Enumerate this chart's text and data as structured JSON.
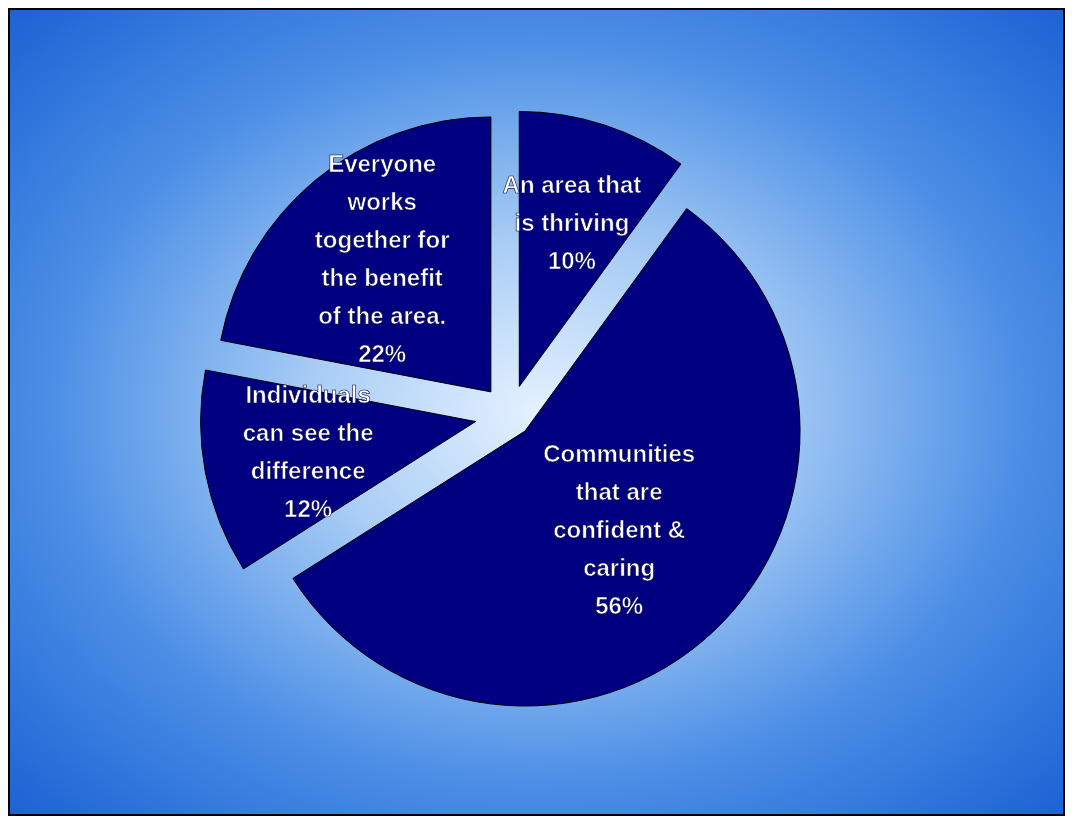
{
  "chart_data": {
    "type": "pie",
    "categories": [
      "An area that is thriving",
      "Communities that are confident & caring",
      "Individuals can see the difference",
      "Everyone works together for the benefit of the area."
    ],
    "values": [
      10,
      56,
      12,
      22
    ],
    "value_labels": [
      "10%",
      "56%",
      "12%",
      "22%"
    ],
    "colors": [
      "#000080",
      "#000080",
      "#000080",
      "#000080"
    ]
  }
}
